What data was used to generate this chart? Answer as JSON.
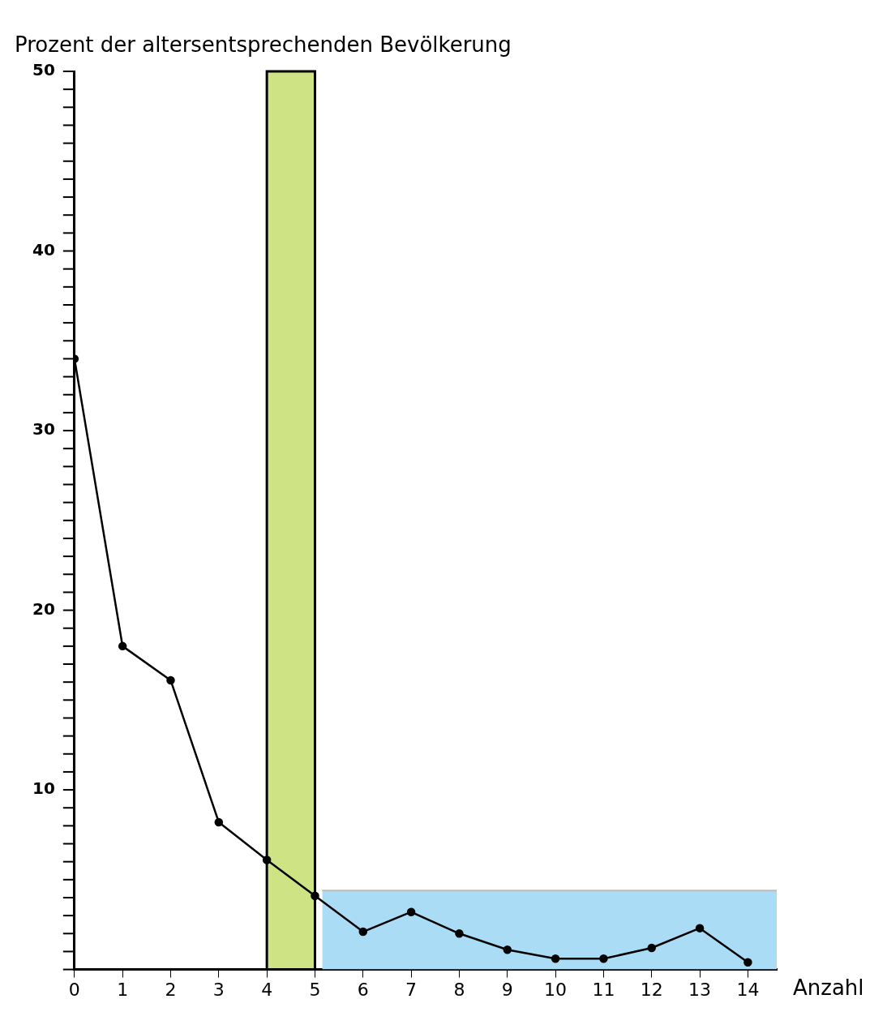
{
  "chart_data": {
    "type": "line",
    "ylabel": "Prozent der altersentsprechenden Bevölkerung",
    "xlabel": "Anzahl",
    "x": [
      0,
      1,
      2,
      3,
      4,
      5,
      6,
      7,
      8,
      9,
      10,
      11,
      12,
      13,
      14
    ],
    "series": [
      {
        "type": "area",
        "marker": "none",
        "color": "#aadcf5",
        "x": [
          5.15,
          14.6
        ],
        "values": [
          4.4,
          4.4
        ]
      },
      {
        "color": "#000000",
        "values": [
          34,
          18,
          16.1,
          8.2,
          6.1,
          4.1,
          2.1,
          3.2,
          2,
          1.1,
          0.6,
          0.6,
          1.2,
          2.3,
          0.4
        ]
      }
    ],
    "xlim": [
      0,
      14.6
    ],
    "xticks": [
      0,
      1,
      2,
      3,
      4,
      5,
      6,
      7,
      8,
      9,
      10,
      11,
      12,
      13,
      14
    ],
    "ylim": [
      0,
      50
    ],
    "yticks": [
      {
        "value": 0,
        "label": null
      },
      {
        "value": 1,
        "label": null
      },
      {
        "value": 2,
        "label": null
      },
      {
        "value": 3,
        "label": null
      },
      {
        "value": 4,
        "label": null
      },
      {
        "value": 5,
        "label": null
      },
      {
        "value": 6,
        "label": null
      },
      {
        "value": 7,
        "label": null
      },
      {
        "value": 8,
        "label": null
      },
      {
        "value": 9,
        "label": null
      },
      10,
      {
        "value": 11,
        "label": null
      },
      {
        "value": 12,
        "label": null
      },
      {
        "value": 13,
        "label": null
      },
      {
        "value": 14,
        "label": null
      },
      {
        "value": 15,
        "label": null
      },
      {
        "value": 16,
        "label": null
      },
      {
        "value": 17,
        "label": null
      },
      {
        "value": 18,
        "label": null
      },
      {
        "value": 19,
        "label": null
      },
      20,
      {
        "value": 21,
        "label": null
      },
      {
        "value": 22,
        "label": null
      },
      {
        "value": 23,
        "label": null
      },
      {
        "value": 24,
        "label": null
      },
      {
        "value": 25,
        "label": null
      },
      {
        "value": 26,
        "label": null
      },
      {
        "value": 27,
        "label": null
      },
      {
        "value": 28,
        "label": null
      },
      {
        "value": 29,
        "label": null
      },
      30,
      {
        "value": 31,
        "label": null
      },
      {
        "value": 32,
        "label": null
      },
      {
        "value": 33,
        "label": null
      },
      {
        "value": 34,
        "label": null
      },
      {
        "value": 35,
        "label": null
      },
      {
        "value": 36,
        "label": null
      },
      {
        "value": 37,
        "label": null
      },
      {
        "value": 38,
        "label": null
      },
      {
        "value": 39,
        "label": null
      },
      40,
      {
        "value": 41,
        "label": null
      },
      {
        "value": 42,
        "label": null
      },
      {
        "value": 43,
        "label": null
      },
      {
        "value": 44,
        "label": null
      },
      {
        "value": 45,
        "label": null
      },
      {
        "value": 46,
        "label": null
      },
      {
        "value": 47,
        "label": null
      },
      {
        "value": 48,
        "label": null
      },
      {
        "value": 49,
        "label": null
      },
      50
    ],
    "bands": [
      {
        "axis": "x",
        "from": 4,
        "to": 5,
        "color": "#cde384"
      }
    ],
    "marker": "circle",
    "line_style": "solid",
    "grid": false,
    "legend": false
  }
}
